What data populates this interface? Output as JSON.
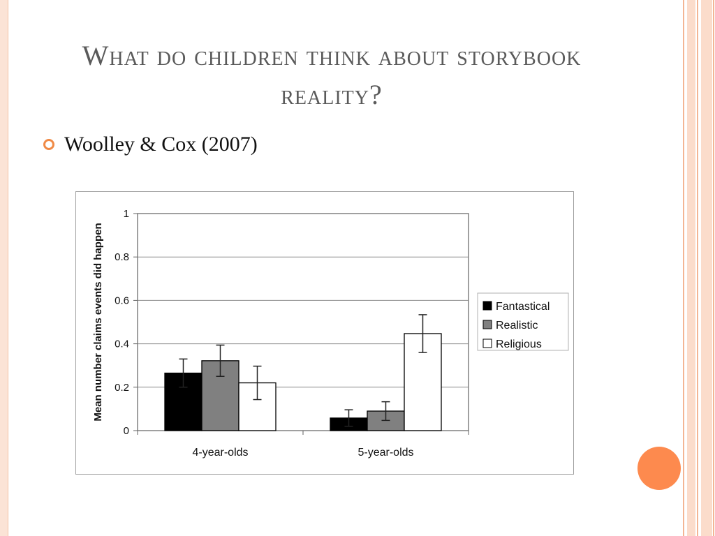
{
  "slide": {
    "title": "What do children think about storybook reality?",
    "bullet": "Woolley & Cox (2007)",
    "accent_color": "#f08a46",
    "bullet_icon": "ring-bullet-icon"
  },
  "chart_data": {
    "type": "bar",
    "title": "",
    "xlabel": "",
    "ylabel": "Mean number claims events did happen",
    "categories": [
      "4-year-olds",
      "5-year-olds"
    ],
    "series": [
      {
        "name": "Fantastical",
        "color": "#000000",
        "values": [
          0.265,
          0.058
        ],
        "error": [
          0.065,
          0.038
        ]
      },
      {
        "name": "Realistic",
        "color": "#808080",
        "values": [
          0.322,
          0.09
        ],
        "error": [
          0.072,
          0.043
        ]
      },
      {
        "name": "Religious",
        "color": "#ffffff",
        "values": [
          0.22,
          0.447
        ],
        "error": [
          0.077,
          0.087
        ]
      }
    ],
    "ylim": [
      0,
      1
    ],
    "yticks": [
      "0",
      "0.2",
      "0.4",
      "0.6",
      "0.8",
      "1"
    ],
    "grid": true,
    "legend": "right"
  }
}
